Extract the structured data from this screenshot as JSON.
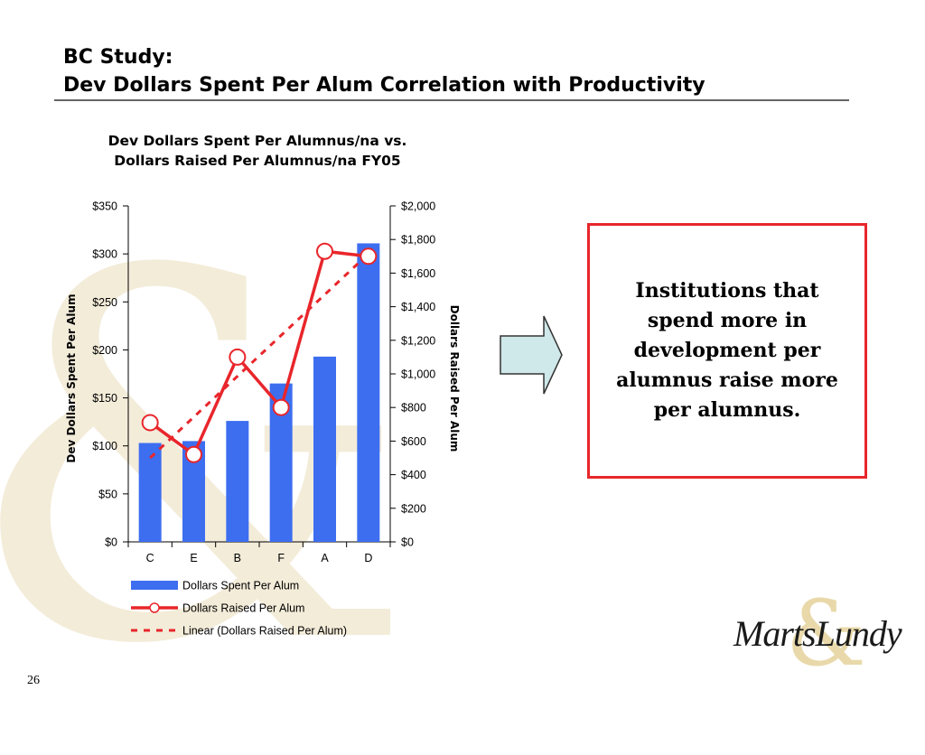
{
  "slide": {
    "title_line1": "BC Study:",
    "title_line2": "Dev Dollars Spent Per Alum Correlation with Productivity",
    "page_number": "26",
    "logo_text": "MartsLundy",
    "callout_text": "Institutions that spend more in development per alumnus raise more per alumnus.",
    "colors": {
      "callout_border": "#e8262b",
      "arrow_fill": "#cfe8ea",
      "logo_gold": "#e9d9aa"
    }
  },
  "chart_data": {
    "type": "bar",
    "title_line1": "Dev Dollars Spent Per Alumnus/na vs.",
    "title_line2": "Dollars Raised Per Alumnus/na FY05",
    "categories": [
      "C",
      "E",
      "B",
      "F",
      "A",
      "D"
    ],
    "ylabel": "Dev Dollars Spent Per Alum",
    "y2label": "Dollars Raised Per Alum",
    "ylim": [
      0,
      350
    ],
    "y2lim": [
      0,
      2000
    ],
    "y_ticks": [
      "$0",
      "$50",
      "$100",
      "$150",
      "$200",
      "$250",
      "$300",
      "$350"
    ],
    "y2_ticks": [
      "$0",
      "$200",
      "$400",
      "$600",
      "$800",
      "$1,000",
      "$1,200",
      "$1,400",
      "$1,600",
      "$1,800",
      "$2,000"
    ],
    "series": [
      {
        "name": "Dollars Spent Per Alum",
        "type": "bar",
        "axis": "left",
        "color": "#3d6ef0",
        "values": [
          103,
          105,
          126,
          165,
          193,
          311
        ]
      },
      {
        "name": "Dollars Raised Per Alum",
        "type": "line",
        "axis": "right",
        "color": "#e8262b",
        "values": [
          710,
          520,
          1100,
          800,
          1730,
          1700
        ]
      },
      {
        "name": "Linear (Dollars Raised Per Alum)",
        "type": "trendline",
        "axis": "right",
        "color": "#e8262b",
        "values": [
          500,
          743,
          986,
          1229,
          1472,
          1715
        ]
      }
    ],
    "legend_position": "bottom"
  }
}
